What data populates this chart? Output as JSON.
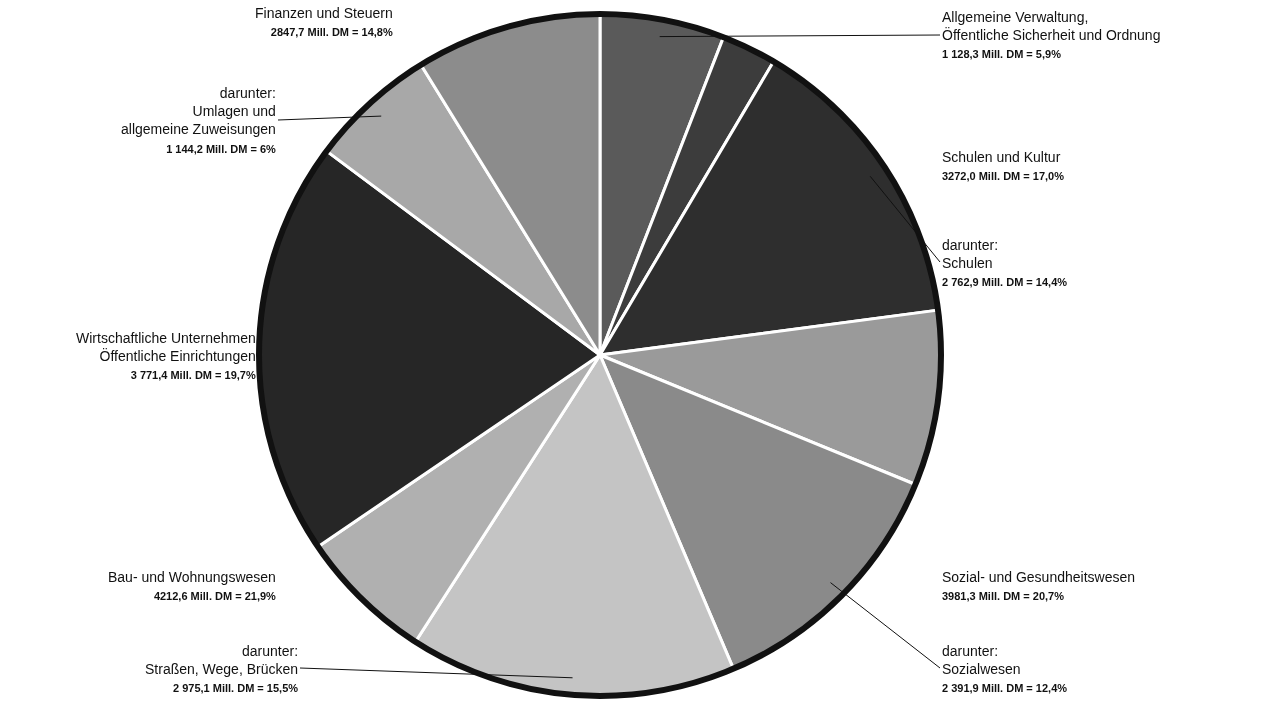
{
  "chart_data": {
    "type": "pie",
    "categories": [
      "Allgemeine Verwaltung,\nÖffentliche Sicherheit und Ordnung",
      null,
      "darunter:\nSchulen",
      null,
      "darunter:\nSozialwesen",
      "darunter:\nStraßen, Wege, Brücken",
      null,
      "Wirtschaftliche Unternehmen\nÖffentliche Einrichtungen",
      "darunter:\nUmlagen und\nallgemeine Zuweisungen",
      null
    ],
    "values": [
      5.9,
      2.6,
      14.4,
      8.3,
      12.4,
      15.5,
      6.4,
      19.7,
      6.0,
      8.8
    ],
    "value_labels": [
      "1 128,3 Mill. DM = 5,9%",
      null,
      "2 762,9 Mill. DM = 14,4%",
      null,
      "2 391,9 Mill. DM = 12,4%",
      "2 975,1 Mill. DM = 15,5%",
      null,
      "3 771,4 Mill. DM = 19,7%",
      "1 144,2 Mill. DM = 6%",
      null
    ],
    "colors": [
      "#5a5a5a",
      "#3c3c3c",
      "#2e2e2e",
      "#9a9a9a",
      "#8a8a8a",
      "#c4c4c4",
      "#b0b0b0",
      "#262626",
      "#a8a8a8",
      "#8c8c8c"
    ],
    "annotations": [
      "Schulen und Kultur\n3272,0 Mill. DM = 17,0%",
      "Sozial- und Gesundheitswesen\n3981,3 Mill. DM = 20,7%",
      "Bau- und Wohnungswesen\n4212,6 Mill. DM = 21,9%",
      "Finanzen und Steuern\n2847,7 Mill. DM = 14,8%"
    ],
    "legend": false
  }
}
